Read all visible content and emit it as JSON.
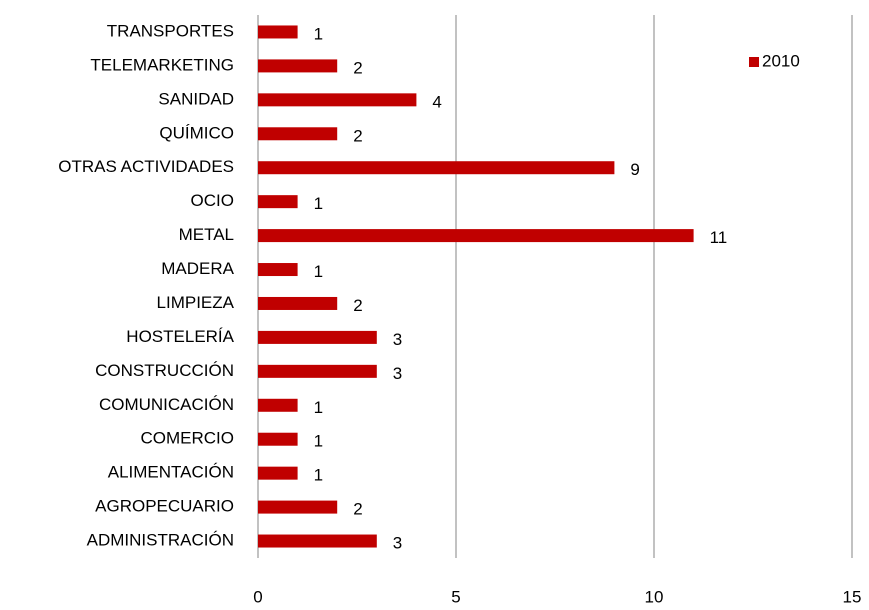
{
  "chart_data": {
    "type": "hbar",
    "categories": [
      "TRANSPORTES",
      "TELEMARKETING",
      "SANIDAD",
      "QUÍMICO",
      "OTRAS ACTIVIDADES",
      "OCIO",
      "METAL",
      "MADERA",
      "LIMPIEZA",
      "HOSTELERÍA",
      "CONSTRUCCIÓN",
      "COMUNICACIÓN",
      "COMERCIO",
      "ALIMENTACIÓN",
      "AGROPECUARIO",
      "ADMINISTRACIÓN"
    ],
    "series": [
      {
        "name": "2010",
        "color": "#c00000",
        "values": [
          1,
          2,
          4,
          2,
          9,
          1,
          11,
          1,
          2,
          3,
          3,
          1,
          1,
          1,
          2,
          3
        ]
      }
    ],
    "xlim": [
      0,
      15
    ],
    "xticks": [
      0,
      5,
      10,
      15
    ],
    "grid": true,
    "legend": "top-right"
  }
}
